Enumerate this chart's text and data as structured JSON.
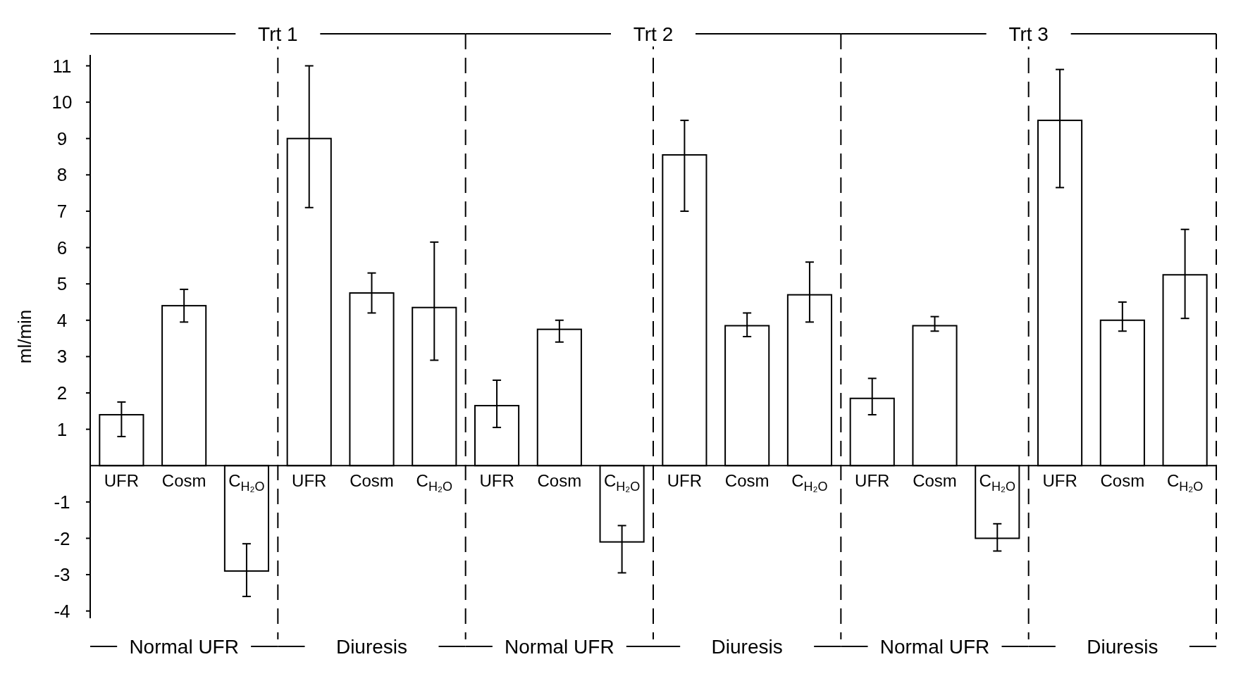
{
  "chart_data": {
    "type": "bar",
    "ylabel": "ml/min",
    "categories": [
      "UFR",
      "Cosm",
      "C$_{H₂O}$",
      "UFR",
      "Cosm",
      "C$_{H₂O}$",
      "UFR",
      "Cosm",
      "C$_{H₂O}$",
      "UFR",
      "Cosm",
      "C$_{H₂O}$",
      "UFR",
      "Cosm",
      "C$_{H₂O}$",
      "UFR",
      "Cosm",
      "C$_{H₂O}$"
    ],
    "values": [
      1.4,
      4.4,
      -2.9,
      9.0,
      4.75,
      4.35,
      1.65,
      3.75,
      -2.1,
      8.55,
      3.85,
      4.7,
      1.85,
      3.85,
      -2.0,
      9.5,
      4.0,
      5.25
    ],
    "errors": [
      [
        0.8,
        1.75
      ],
      [
        3.95,
        4.85
      ],
      [
        -3.6,
        -2.15
      ],
      [
        7.1,
        11.0
      ],
      [
        4.2,
        5.3
      ],
      [
        2.9,
        6.15
      ],
      [
        1.05,
        2.35
      ],
      [
        3.4,
        4.0
      ],
      [
        -2.95,
        -1.65
      ],
      [
        7.0,
        9.5
      ],
      [
        3.55,
        4.2
      ],
      [
        3.95,
        5.6
      ],
      [
        1.4,
        2.4
      ],
      [
        3.7,
        4.1
      ],
      [
        -2.35,
        -1.6
      ],
      [
        7.65,
        10.9
      ],
      [
        3.7,
        4.5
      ],
      [
        4.05,
        6.5
      ]
    ],
    "color": "#ffffff",
    "ylim": [
      -4.2,
      11.3
    ],
    "yticks": [
      -4,
      -3,
      -2,
      -1,
      1,
      2,
      3,
      4,
      5,
      6,
      7,
      8,
      9,
      10,
      11
    ],
    "grid": false,
    "annotations": [
      "Trt 1",
      "Trt 2",
      "Trt 3",
      "Normal UFR",
      "Diuresis",
      "Normal UFR",
      "Diuresis",
      "Normal UFR",
      "Diuresis"
    ]
  }
}
